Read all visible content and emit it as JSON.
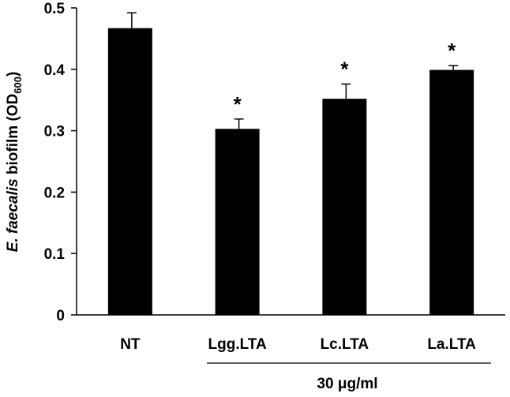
{
  "chart_data": {
    "type": "bar",
    "title": "",
    "categories": [
      "NT",
      "Lgg.LTA",
      "Lc.LTA",
      "La.LTA"
    ],
    "values": [
      0.467,
      0.303,
      0.352,
      0.399
    ],
    "errors": [
      0.025,
      0.016,
      0.024,
      0.007
    ],
    "significance": [
      "",
      "*",
      "*",
      "*"
    ],
    "ylabel": {
      "italic_part": "E. faecalis",
      "plain_part": " biofilm (OD",
      "subscript": "600",
      "closing": ")"
    },
    "xlabel": "",
    "group_label": "30 μg/ml",
    "ylim": [
      0,
      0.5
    ],
    "yticks": [
      0,
      0.1,
      0.2,
      0.3,
      0.4,
      0.5
    ],
    "ytick_labels": [
      "0",
      "0.1",
      "0.2",
      "0.3",
      "0.4",
      "0.5"
    ],
    "bar_color": "#000000",
    "grid": false,
    "legend": "none"
  }
}
